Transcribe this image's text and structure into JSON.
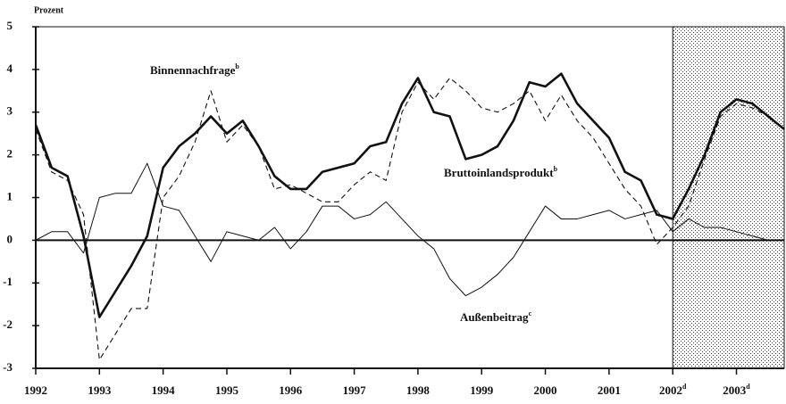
{
  "chart_data": {
    "type": "line",
    "axis_title": "Prozent",
    "x": [
      1992,
      1992.25,
      1992.5,
      1992.75,
      1993,
      1993.25,
      1993.5,
      1993.75,
      1994,
      1994.25,
      1994.5,
      1994.75,
      1995,
      1995.25,
      1995.5,
      1995.75,
      1996,
      1996.25,
      1996.5,
      1996.75,
      1997,
      1997.25,
      1997.5,
      1997.75,
      1998,
      1998.25,
      1998.5,
      1998.75,
      1999,
      1999.25,
      1999.5,
      1999.75,
      2000,
      2000.25,
      2000.5,
      2000.75,
      2001,
      2001.25,
      2001.5,
      2001.75,
      2002,
      2002.25,
      2002.5,
      2002.75,
      2003,
      2003.25,
      2003.5,
      2003.75
    ],
    "series": [
      {
        "name": "Bruttoinlandsprodukt",
        "note": "b",
        "color": "#111111",
        "style": "thick",
        "values": [
          2.7,
          1.7,
          1.5,
          0.1,
          -1.8,
          -1.2,
          -0.6,
          0.1,
          1.7,
          2.2,
          2.5,
          2.9,
          2.5,
          2.8,
          2.2,
          1.5,
          1.2,
          1.2,
          1.6,
          1.7,
          1.8,
          2.2,
          2.3,
          3.2,
          3.8,
          3.0,
          2.9,
          1.9,
          2.0,
          2.2,
          2.8,
          3.7,
          3.6,
          3.9,
          3.2,
          2.8,
          2.4,
          1.6,
          1.4,
          0.6,
          0.5,
          1.2,
          2.0,
          3.0,
          3.3,
          3.2,
          2.9,
          2.6
        ]
      },
      {
        "name": "Binnennachfrage",
        "note": "b",
        "color": "#111111",
        "style": "dashed",
        "values": [
          2.6,
          1.6,
          1.4,
          0.6,
          -2.8,
          -2.2,
          -1.6,
          -1.6,
          1.0,
          1.5,
          2.3,
          3.5,
          2.3,
          2.7,
          2.2,
          1.2,
          1.3,
          1.1,
          0.9,
          0.9,
          1.3,
          1.6,
          1.4,
          3.0,
          3.7,
          3.3,
          3.8,
          3.5,
          3.1,
          3.0,
          3.2,
          3.5,
          2.8,
          3.4,
          2.8,
          2.4,
          1.8,
          1.2,
          0.8,
          -0.1,
          0.3,
          0.8,
          1.9,
          2.9,
          3.2,
          3.1,
          2.9,
          2.6
        ]
      },
      {
        "name": "Außenbeitrag",
        "note": "c",
        "color": "#111111",
        "style": "thin",
        "values": [
          0.0,
          0.2,
          0.2,
          -0.3,
          1.0,
          1.1,
          1.1,
          1.8,
          0.8,
          0.7,
          0.1,
          -0.5,
          0.2,
          0.1,
          0.0,
          0.3,
          -0.2,
          0.2,
          0.8,
          0.8,
          0.5,
          0.6,
          0.9,
          0.5,
          0.1,
          -0.2,
          -0.9,
          -1.3,
          -1.1,
          -0.8,
          -0.4,
          0.2,
          0.8,
          0.5,
          0.5,
          0.6,
          0.7,
          0.5,
          0.6,
          0.7,
          0.2,
          0.5,
          0.3,
          0.3,
          0.2,
          0.1,
          0.0,
          0.0
        ]
      }
    ],
    "xlim": [
      1992,
      2003.75
    ],
    "xticks": [
      1992,
      1993,
      1994,
      1995,
      1996,
      1997,
      1998,
      1999,
      2000,
      2001,
      2002,
      2003
    ],
    "xtick_notes": [
      null,
      null,
      null,
      null,
      null,
      null,
      null,
      null,
      null,
      null,
      "d",
      "d"
    ],
    "ylim": [
      -3,
      5
    ],
    "yticks": [
      -3,
      -2,
      -1,
      0,
      1,
      2,
      3,
      4,
      5
    ],
    "shade_from": 2002
  }
}
